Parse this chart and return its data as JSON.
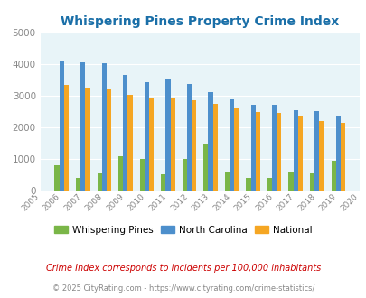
{
  "title": "Whispering Pines Property Crime Index",
  "years": [
    2005,
    2006,
    2007,
    2008,
    2009,
    2010,
    2011,
    2012,
    2013,
    2014,
    2015,
    2016,
    2017,
    2018,
    2019,
    2020
  ],
  "bar_years": [
    2006,
    2007,
    2008,
    2009,
    2010,
    2011,
    2012,
    2013,
    2014,
    2015,
    2016,
    2017,
    2018,
    2019
  ],
  "whispering_pines": [
    800,
    420,
    560,
    1080,
    1000,
    510,
    1000,
    1450,
    610,
    420,
    420,
    580,
    540,
    950
  ],
  "north_carolina": [
    4100,
    4075,
    4050,
    3670,
    3450,
    3540,
    3375,
    3130,
    2895,
    2730,
    2730,
    2560,
    2530,
    2375
  ],
  "national": [
    3340,
    3240,
    3210,
    3050,
    2950,
    2930,
    2870,
    2740,
    2620,
    2490,
    2450,
    2360,
    2200,
    2150
  ],
  "ylim": [
    0,
    5000
  ],
  "yticks": [
    0,
    1000,
    2000,
    3000,
    4000,
    5000
  ],
  "color_wp": "#7ab648",
  "color_nc": "#4d8fcc",
  "color_nat": "#f5a623",
  "bg_color": "#e8f4f8",
  "title_color": "#1a6fa8",
  "legend_labels": [
    "Whispering Pines",
    "North Carolina",
    "National"
  ],
  "footnote1": "Crime Index corresponds to incidents per 100,000 inhabitants",
  "footnote2": "© 2025 CityRating.com - https://www.cityrating.com/crime-statistics/",
  "footnote1_color": "#cc0000",
  "footnote2_color": "#888888",
  "bar_width": 0.22
}
